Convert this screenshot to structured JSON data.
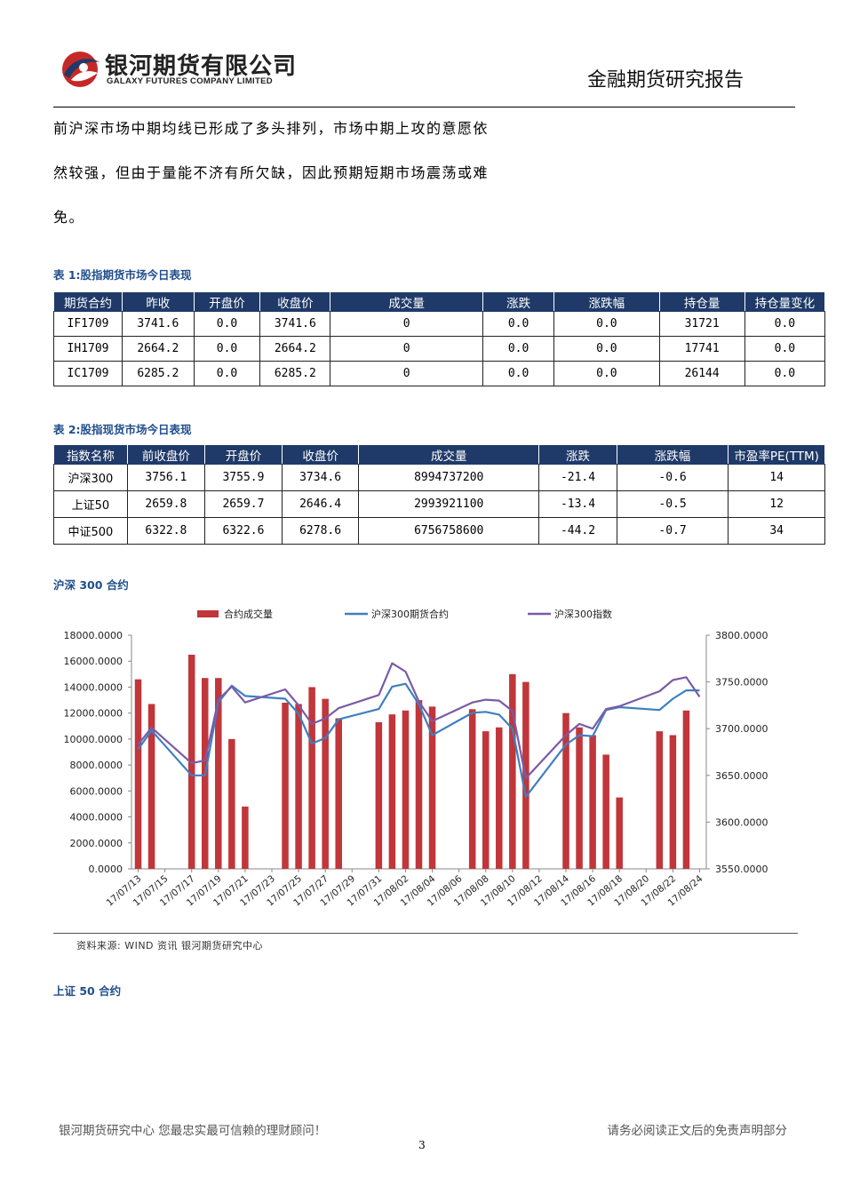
{
  "header": {
    "company_cn": "银河期货有限公司",
    "company_en": "GALAXY FUTURES COMPANY LIMITED",
    "report_title": "金融期货研究报告"
  },
  "body": {
    "line1": "前沪深市场中期均线已形成了多头排列，市场中期上攻的意愿依",
    "line2": "然较强，但由于量能不济有所欠缺，因此预期短期市场震荡或难",
    "line3": "免。"
  },
  "table1": {
    "caption": "表 1:股指期货市场今日表现",
    "headers": [
      "期货合约",
      "昨收",
      "开盘价",
      "收盘价",
      "成交量",
      "涨跌",
      "涨跌幅",
      "持仓量",
      "持仓量变化"
    ],
    "rows": [
      [
        "IF1709",
        "3741.6",
        "0.0",
        "3741.6",
        "0",
        "0.0",
        "0.0",
        "31721",
        "0.0"
      ],
      [
        "IH1709",
        "2664.2",
        "0.0",
        "2664.2",
        "0",
        "0.0",
        "0.0",
        "17741",
        "0.0"
      ],
      [
        "IC1709",
        "6285.2",
        "0.0",
        "6285.2",
        "0",
        "0.0",
        "0.0",
        "26144",
        "0.0"
      ]
    ]
  },
  "table2": {
    "caption": "表 2:股指现货市场今日表现",
    "headers": [
      "指数名称",
      "前收盘价",
      "开盘价",
      "收盘价",
      "成交量",
      "涨跌",
      "涨跌幅",
      "市盈率PE(TTM)"
    ],
    "rows": [
      [
        "沪深300",
        "3756.1",
        "3755.9",
        "3734.6",
        "8994737200",
        "-21.4",
        "-0.6",
        "14"
      ],
      [
        "上证50",
        "2659.8",
        "2659.7",
        "2646.4",
        "2993921100",
        "-13.4",
        "-0.5",
        "12"
      ],
      [
        "中证500",
        "6322.8",
        "6322.6",
        "6278.6",
        "6756758600",
        "-44.2",
        "-0.7",
        "34"
      ]
    ]
  },
  "chart_section": {
    "title": "沪深 300 合约",
    "source": "资料来源: WIND 资讯    银河期货研究中心"
  },
  "section2": {
    "title": "上证 50 合约"
  },
  "footer": {
    "left": "银河期货研究中心  您最忠实最可信赖的理财顾问！",
    "right": "请务必阅读正文后的免责声明部分",
    "page": "3"
  },
  "colors": {
    "bar": "#c0363a",
    "futures_line": "#3f7fbf",
    "index_line": "#7b5aa6",
    "table_header": "#1f3a68",
    "caption": "#1f4e8c"
  },
  "chart_data": {
    "type": "bar",
    "grid": false,
    "legend_position": "top",
    "x_ticks": [
      "17/07/13",
      "17/07/15",
      "17/07/17",
      "17/07/19",
      "17/07/21",
      "17/07/23",
      "17/07/25",
      "17/07/27",
      "17/07/29",
      "17/07/31",
      "17/08/02",
      "17/08/04",
      "17/08/06",
      "17/08/08",
      "17/08/10",
      "17/08/12",
      "17/08/14",
      "17/08/16",
      "17/08/18",
      "17/08/20",
      "17/08/22",
      "17/08/24"
    ],
    "x_start": "17/07/13",
    "left_axis": {
      "ylim": [
        0,
        18000
      ],
      "ticks": [
        "0.0000",
        "2000.0000",
        "4000.0000",
        "6000.0000",
        "8000.0000",
        "10000.0000",
        "12000.0000",
        "14000.0000",
        "16000.0000",
        "18000.0000"
      ]
    },
    "right_axis": {
      "ylim": [
        3550,
        3800
      ],
      "ticks": [
        "3550.0000",
        "3600.0000",
        "3650.0000",
        "3700.0000",
        "3750.0000",
        "3800.0000"
      ]
    },
    "series": [
      {
        "name": "合约成交量",
        "kind": "bar",
        "axis": "left",
        "x": [
          "17/07/13",
          "17/07/14",
          "17/07/17",
          "17/07/18",
          "17/07/19",
          "17/07/20",
          "17/07/21",
          "17/07/24",
          "17/07/25",
          "17/07/26",
          "17/07/27",
          "17/07/28",
          "17/07/31",
          "17/08/01",
          "17/08/02",
          "17/08/03",
          "17/08/04",
          "17/08/07",
          "17/08/08",
          "17/08/09",
          "17/08/10",
          "17/08/11",
          "17/08/14",
          "17/08/15",
          "17/08/16",
          "17/08/17",
          "17/08/18",
          "17/08/21",
          "17/08/22",
          "17/08/23"
        ],
        "values": [
          14600,
          12700,
          16500,
          14700,
          14700,
          10000,
          4800,
          12800,
          12700,
          14000,
          13100,
          11600,
          11300,
          11900,
          12200,
          13000,
          12500,
          12300,
          10600,
          10900,
          15000,
          14400,
          12000,
          10900,
          10300,
          8800,
          5500,
          10600,
          10300,
          12200
        ]
      },
      {
        "name": "沪深300期货合约",
        "kind": "line",
        "axis": "right",
        "x": [
          "17/07/13",
          "17/07/14",
          "17/07/17",
          "17/07/18",
          "17/07/19",
          "17/07/20",
          "17/07/21",
          "17/07/24",
          "17/07/25",
          "17/07/26",
          "17/07/27",
          "17/07/28",
          "17/07/31",
          "17/08/01",
          "17/08/02",
          "17/08/03",
          "17/08/04",
          "17/08/07",
          "17/08/08",
          "17/08/09",
          "17/08/10",
          "17/08/11",
          "17/08/14",
          "17/08/15",
          "17/08/16",
          "17/08/17",
          "17/08/18",
          "17/08/21",
          "17/08/22",
          "17/08/23",
          "17/08/24"
        ],
        "values": [
          3678,
          3698,
          3650,
          3650,
          3728,
          3746,
          3735,
          3732,
          3716,
          3684,
          3690,
          3710,
          3721,
          3745,
          3748,
          3726,
          3693,
          3717,
          3718,
          3715,
          3700,
          3627,
          3683,
          3693,
          3692,
          3720,
          3723,
          3720,
          3732,
          3741,
          3741
        ]
      },
      {
        "name": "沪深300指数",
        "kind": "line",
        "axis": "right",
        "x": [
          "17/07/13",
          "17/07/14",
          "17/07/17",
          "17/07/18",
          "17/07/19",
          "17/07/20",
          "17/07/21",
          "17/07/24",
          "17/07/25",
          "17/07/26",
          "17/07/27",
          "17/07/28",
          "17/07/31",
          "17/08/01",
          "17/08/02",
          "17/08/03",
          "17/08/04",
          "17/08/07",
          "17/08/08",
          "17/08/09",
          "17/08/10",
          "17/08/11",
          "17/08/14",
          "17/08/15",
          "17/08/16",
          "17/08/17",
          "17/08/18",
          "17/08/21",
          "17/08/22",
          "17/08/23",
          "17/08/24"
        ],
        "values": [
          3683,
          3701,
          3663,
          3666,
          3731,
          3745,
          3728,
          3742,
          3725,
          3705,
          3711,
          3722,
          3736,
          3770,
          3761,
          3729,
          3708,
          3728,
          3731,
          3730,
          3719,
          3647,
          3693,
          3705,
          3700,
          3721,
          3724,
          3740,
          3752,
          3755,
          3734
        ]
      }
    ]
  }
}
